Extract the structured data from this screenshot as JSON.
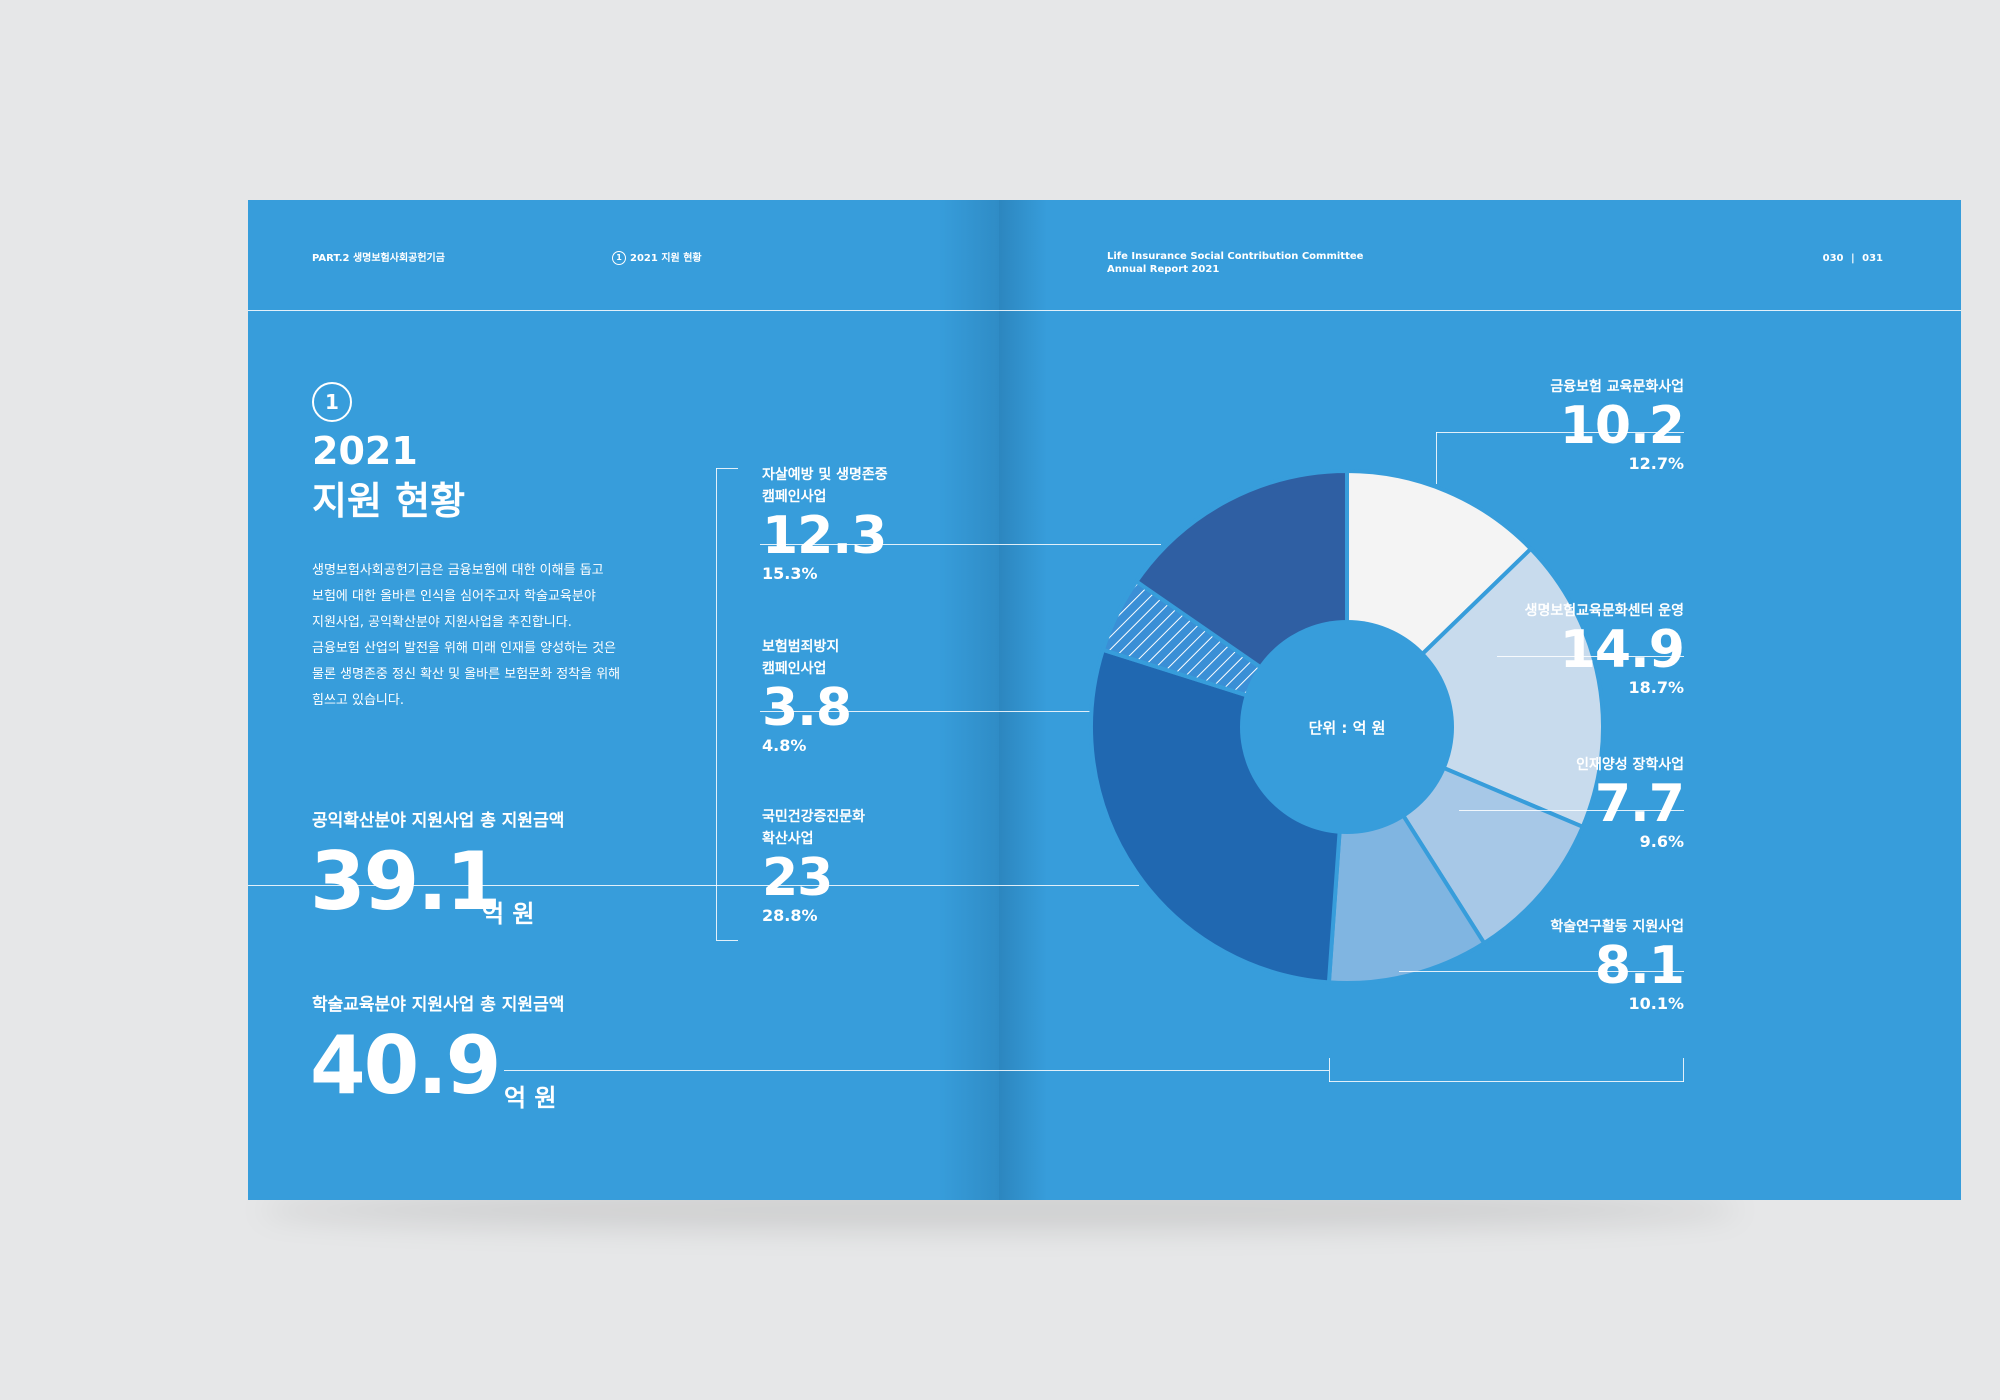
{
  "header": {
    "part": "PART.2 생명보험사회공헌기금",
    "section_num": "1",
    "section": "2021 지원 현황",
    "org_line1": "Life Insurance Social Contribution Committee",
    "org_line2": "Annual Report 2021",
    "page_left": "030",
    "page_sep": "|",
    "page_right": "031"
  },
  "intro": {
    "num": "1",
    "title_line1": "2021",
    "title_line2": "지원 현황",
    "body": [
      "생명보험사회공헌기금은 금융보험에 대한 이해를 돕고",
      "보험에 대한 올바른 인식을 심어주고자 학술교육분야",
      "지원사업, 공익확산분야 지원사업을 추진합니다.",
      "금융보험 산업의 발전을 위해 미래 인재를 양성하는 것은",
      "물론 생명존중 정신 확산 및 올바른 보험문화 정착을 위해",
      "힘쓰고 있습니다."
    ]
  },
  "totals": {
    "public_label": "공익확산분야 지원사업 총 지원금액",
    "public_value": "39.1",
    "public_unit": "억 원",
    "academic_label": "학술교육분야 지원사업 총 지원금액",
    "academic_value": "40.9",
    "academic_unit": "억 원"
  },
  "chart_data": {
    "type": "pie",
    "subtype": "donut",
    "center_label": "단위 : 억 원",
    "groups": [
      {
        "name": "공익확산분야",
        "total": 39.1
      },
      {
        "name": "학술교육분야",
        "total": 40.9
      }
    ],
    "slices": [
      {
        "label_lines": [
          "금융보험 교육문화사업"
        ],
        "value": 10.2,
        "value_text": "10.2",
        "percent": "12.7%",
        "color": "#f4f4f4",
        "hatched": false
      },
      {
        "label_lines": [
          "생명보험교육문화센터 운영"
        ],
        "value": 14.9,
        "value_text": "14.9",
        "percent": "18.7%",
        "color": "#c8dbed",
        "hatched": false
      },
      {
        "label_lines": [
          "인재양성 장학사업"
        ],
        "value": 7.7,
        "value_text": "7.7",
        "percent": "9.6%",
        "color": "#a7c8e7",
        "hatched": false
      },
      {
        "label_lines": [
          "학술연구활동 지원사업"
        ],
        "value": 8.1,
        "value_text": "8.1",
        "percent": "10.1%",
        "color": "#80b5e1",
        "hatched": false
      },
      {
        "label_lines": [
          "국민건강증진문화",
          "확산사업"
        ],
        "value": 23,
        "value_text": "23",
        "percent": "28.8%",
        "color": "#2068b1",
        "hatched": false
      },
      {
        "label_lines": [
          "보험범죄방지",
          "캠페인사업"
        ],
        "value": 3.8,
        "value_text": "3.8",
        "percent": "4.8%",
        "color": "#3a8fd6",
        "hatched": true
      },
      {
        "label_lines": [
          "자살예방 및 생명존중",
          "캠페인사업"
        ],
        "value": 12.3,
        "value_text": "12.3",
        "percent": "15.3%",
        "color": "#2f5fa3",
        "hatched": false
      }
    ]
  }
}
